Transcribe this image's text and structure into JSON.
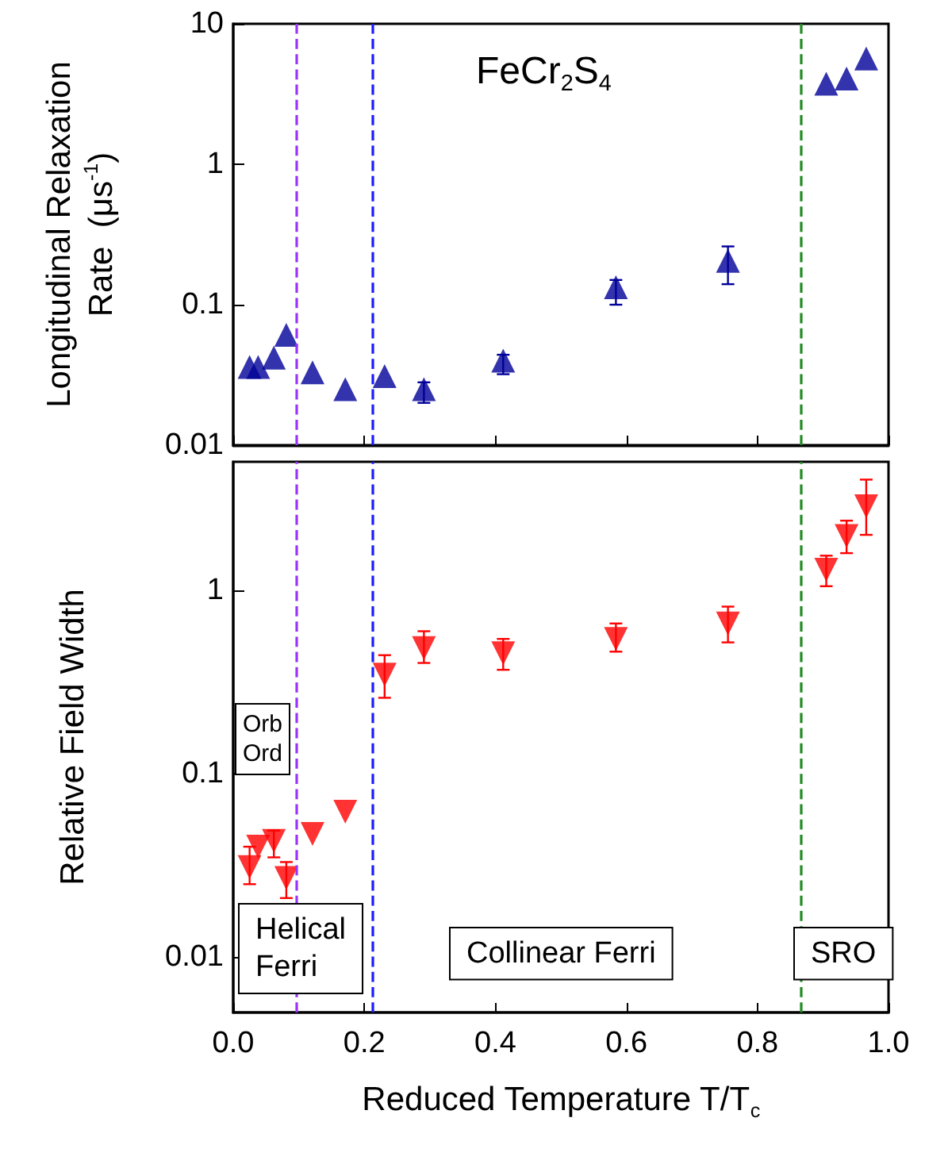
{
  "chart_data": [
    {
      "type": "scatter",
      "ylabel": "Longitudinal Relaxation\nRate  (μs$^{-1}$)",
      "annotations": [
        "FeCr$_{2}$S$_{4}$"
      ],
      "x": [
        0.025,
        0.038,
        0.062,
        0.081,
        0.121,
        0.171,
        0.231,
        0.291,
        0.412,
        0.584,
        0.755,
        0.905,
        0.936,
        0.966
      ],
      "series": [
        {
          "color": "#000099",
          "values": [
            0.036,
            0.036,
            0.042,
            0.061,
            0.033,
            0.025,
            0.031,
            0.025,
            0.04,
            0.133,
            0.205,
            3.74,
            4.08,
            5.66
          ],
          "errors": [
            null,
            null,
            null,
            null,
            null,
            null,
            null,
            [
              0.02,
              0.028
            ],
            [
              0.032,
              0.044
            ],
            [
              0.1,
              0.15
            ],
            [
              0.14,
              0.26
            ],
            null,
            null,
            null
          ]
        }
      ],
      "xlim": [
        0,
        1
      ],
      "xticks": [
        0,
        0.2,
        0.4,
        0.6,
        0.8,
        1
      ],
      "ylim": [
        0.01,
        10
      ],
      "yticks": [
        0.01,
        0.1,
        1,
        10
      ],
      "log": "y",
      "tick_labels": "y",
      "marker": "triangle",
      "ref_lines": [
        {
          "axis": "x",
          "value": 0.097,
          "color": "#9933ff",
          "line_style": "dashed"
        },
        {
          "axis": "x",
          "value": 0.213,
          "color": "#1a1aff",
          "line_style": "dashed"
        },
        {
          "axis": "x",
          "value": 0.867,
          "color": "#228b22",
          "line_style": "dashed"
        }
      ]
    },
    {
      "type": "scatter",
      "xlabel": "Reduced Temperature T/T$_{c}$",
      "ylabel": "Relative Field Width",
      "annotations": [
        "Orb\nOrd",
        "Helical\nFerri",
        "Collinear Ferri",
        "SRO"
      ],
      "x": [
        0.025,
        0.038,
        0.062,
        0.081,
        0.121,
        0.171,
        0.231,
        0.291,
        0.412,
        0.584,
        0.755,
        0.905,
        0.936,
        0.966
      ],
      "series": [
        {
          "color": "#ff0000",
          "values": [
            0.031,
            0.04,
            0.043,
            0.027,
            0.047,
            0.062,
            0.346,
            0.483,
            0.453,
            0.542,
            0.658,
            1.29,
            1.97,
            2.86
          ],
          "errors": [
            [
              0.025,
              0.04
            ],
            null,
            [
              0.035,
              0.049
            ],
            [
              0.021,
              0.033
            ],
            null,
            null,
            [
              0.259,
              0.442
            ],
            [
              0.401,
              0.597
            ],
            [
              0.368,
              0.542
            ],
            [
              0.462,
              0.658
            ],
            [
              0.519,
              0.813
            ],
            [
              1.05,
              1.54
            ],
            [
              1.59,
              2.39
            ],
            [
              2.0,
              4.0
            ]
          ]
        }
      ],
      "xlim": [
        0,
        1
      ],
      "xticks": [
        {
          "value": 0,
          "label": "0.0"
        },
        0.2,
        0.4,
        0.6,
        0.8,
        {
          "value": 1,
          "label": "1.0"
        }
      ],
      "ylim": [
        0.005,
        5
      ],
      "yticks": [
        0.01,
        0.1,
        1
      ],
      "log": "y",
      "marker": "triangle",
      "ref_lines": [
        {
          "axis": "x",
          "value": 0.097,
          "color": "#9933ff",
          "line_style": "dashed"
        },
        {
          "axis": "x",
          "value": 0.213,
          "color": "#1a1aff",
          "line_style": "dashed"
        },
        {
          "axis": "x",
          "value": 0.867,
          "color": "#228b22",
          "line_style": "dashed"
        }
      ]
    }
  ]
}
